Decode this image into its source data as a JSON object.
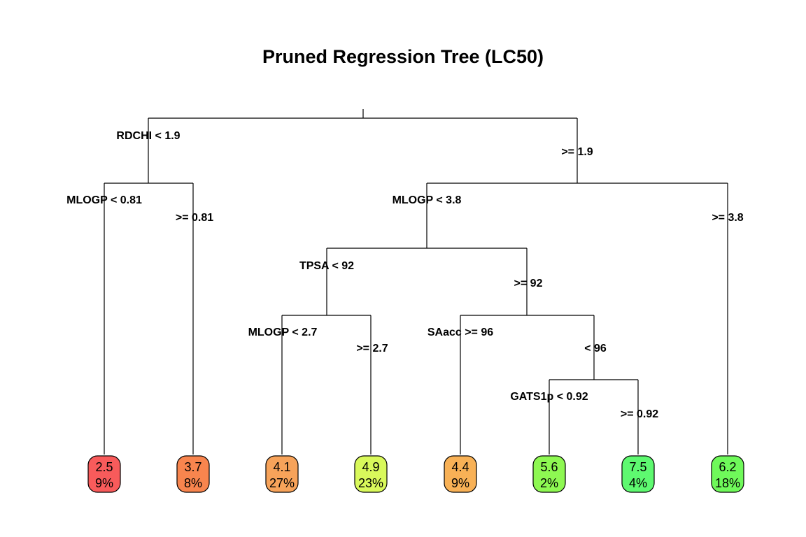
{
  "title": "Pruned Regression Tree (LC50)",
  "splits": [
    {
      "id": "root",
      "left_label": "RDCHI < 1.9",
      "right_label": ">= 1.9"
    },
    {
      "id": "n2",
      "left_label": "MLOGP < 0.81",
      "right_label": ">= 0.81"
    },
    {
      "id": "n3",
      "left_label": "MLOGP < 3.8",
      "right_label": ">= 3.8"
    },
    {
      "id": "n6",
      "left_label": "TPSA < 92",
      "right_label": ">= 92"
    },
    {
      "id": "n12",
      "left_label": "MLOGP < 2.7",
      "right_label": ">= 2.7"
    },
    {
      "id": "n13",
      "left_label": "SAacc >= 96",
      "right_label": "< 96"
    },
    {
      "id": "n27",
      "left_label": "GATS1p < 0.92",
      "right_label": ">= 0.92"
    }
  ],
  "leaves": [
    {
      "id": "leaf-1",
      "value": "2.5",
      "percent": "9%",
      "color": "#f85b5b"
    },
    {
      "id": "leaf-2",
      "value": "3.7",
      "percent": "8%",
      "color": "#f8854e"
    },
    {
      "id": "leaf-3",
      "value": "4.1",
      "percent": "27%",
      "color": "#f7a35a"
    },
    {
      "id": "leaf-4",
      "value": "4.9",
      "percent": "23%",
      "color": "#d9f95b"
    },
    {
      "id": "leaf-5",
      "value": "4.4",
      "percent": "9%",
      "color": "#f8b156"
    },
    {
      "id": "leaf-6",
      "value": "5.6",
      "percent": "2%",
      "color": "#8ef852"
    },
    {
      "id": "leaf-7",
      "value": "7.5",
      "percent": "4%",
      "color": "#5ef970"
    },
    {
      "id": "leaf-8",
      "value": "6.2",
      "percent": "18%",
      "color": "#6ff95a"
    }
  ]
}
